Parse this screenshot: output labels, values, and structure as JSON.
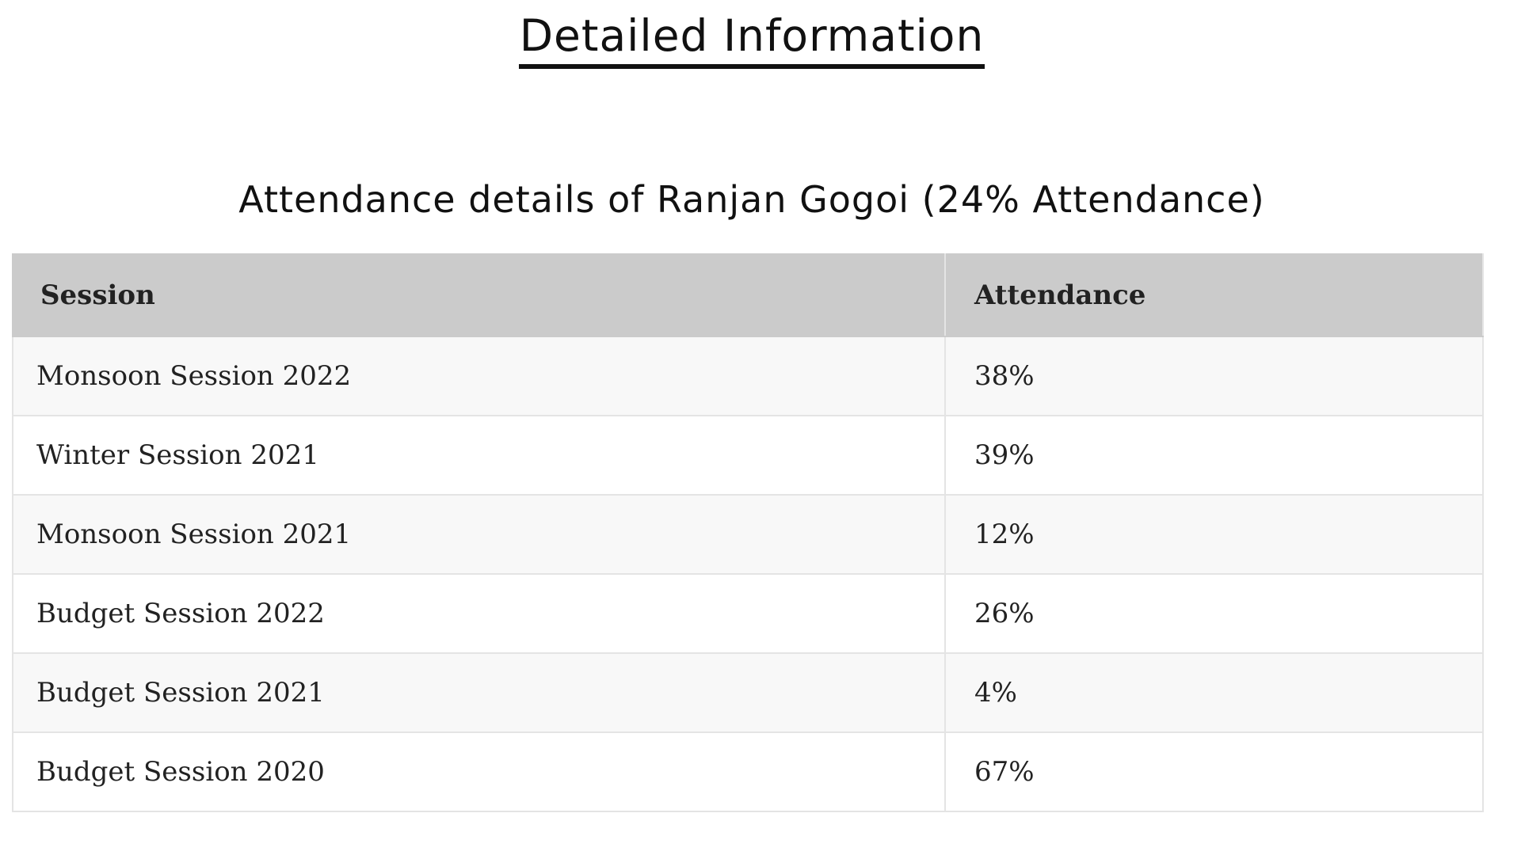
{
  "page": {
    "heading": "Detailed Information"
  },
  "table": {
    "title": "Attendance details of Ranjan Gogoi (24% Attendance)",
    "columns": [
      "Session",
      "Attendance"
    ],
    "rows": [
      {
        "session": "Monsoon Session 2022",
        "attendance": "38%"
      },
      {
        "session": "Winter Session 2021",
        "attendance": "39%"
      },
      {
        "session": "Monsoon Session 2021",
        "attendance": "12%"
      },
      {
        "session": "Budget Session 2022",
        "attendance": "26%"
      },
      {
        "session": "Budget Session 2021",
        "attendance": "4%"
      },
      {
        "session": "Budget Session 2020",
        "attendance": "67%"
      }
    ]
  },
  "colors": {
    "header_background": "#cbcbcb",
    "row_stripe": "#f8f8f8",
    "text": "#111111"
  }
}
